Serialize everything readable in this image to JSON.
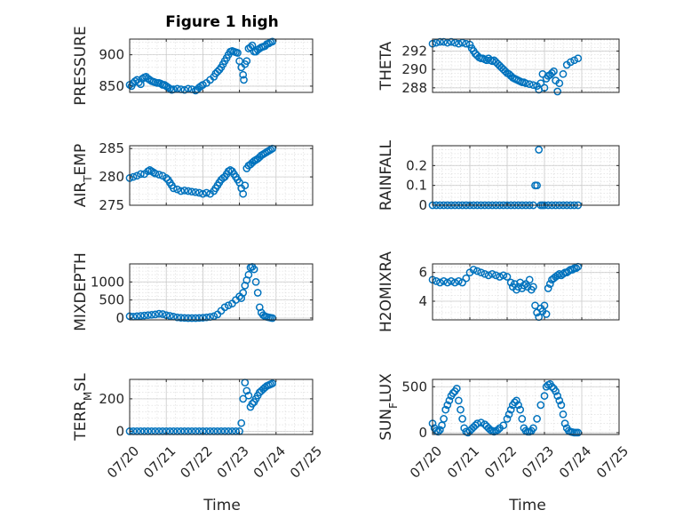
{
  "figure": {
    "title": "Figure 1 high",
    "xlabel_left": "Time",
    "xlabel_right": "Time",
    "marker_color": "#0072BD",
    "grid": true,
    "x_tick_labels": [
      "07/20",
      "07/21",
      "07/22",
      "07/23",
      "07/24",
      "07/25"
    ]
  },
  "chart_data": [
    {
      "type": "scatter",
      "ylabel": "PRESSURE",
      "ylim": [
        840,
        925
      ],
      "yticks": [
        850,
        900
      ],
      "x": [
        0,
        0.05,
        0.1,
        0.15,
        0.2,
        0.25,
        0.3,
        0.35,
        0.4,
        0.45,
        0.5,
        0.55,
        0.6,
        0.65,
        0.7,
        0.75,
        0.8,
        0.85,
        0.9,
        0.95,
        1,
        1.05,
        1.1,
        1.15,
        1.2,
        1.3,
        1.4,
        1.5,
        1.6,
        1.7,
        1.8,
        1.85,
        1.9,
        1.95,
        2,
        2.1,
        2.2,
        2.3,
        2.35,
        2.4,
        2.45,
        2.5,
        2.55,
        2.6,
        2.65,
        2.7,
        2.75,
        2.8,
        2.85,
        2.9,
        2.95,
        3,
        3.05,
        3.1,
        3.12,
        3.15,
        3.2,
        3.25,
        3.3,
        3.35,
        3.4,
        3.45,
        3.5,
        3.55,
        3.6,
        3.65,
        3.7,
        3.75,
        3.8,
        3.85,
        3.9
      ],
      "y": [
        852,
        850,
        855,
        858,
        860,
        856,
        853,
        862,
        864,
        865,
        862,
        860,
        858,
        857,
        856,
        855,
        855,
        854,
        852,
        852,
        850,
        848,
        846,
        844,
        845,
        846,
        845,
        844,
        846,
        845,
        843,
        845,
        848,
        850,
        852,
        855,
        860,
        865,
        870,
        873,
        876,
        880,
        885,
        890,
        895,
        900,
        905,
        906,
        905,
        904,
        903,
        890,
        880,
        868,
        860,
        885,
        890,
        910,
        912,
        915,
        905,
        905,
        908,
        910,
        912,
        913,
        914,
        917,
        918,
        920,
        921
      ]
    },
    {
      "type": "scatter",
      "ylabel": "THETA",
      "ylim": [
        287.5,
        293.3
      ],
      "yticks": [
        288,
        290,
        292
      ],
      "x": [
        0,
        0.1,
        0.2,
        0.3,
        0.4,
        0.5,
        0.6,
        0.7,
        0.8,
        0.9,
        1,
        1.05,
        1.1,
        1.15,
        1.2,
        1.25,
        1.3,
        1.35,
        1.4,
        1.45,
        1.5,
        1.55,
        1.6,
        1.65,
        1.7,
        1.75,
        1.8,
        1.85,
        1.9,
        1.95,
        2,
        2.05,
        2.1,
        2.15,
        2.2,
        2.25,
        2.3,
        2.35,
        2.4,
        2.45,
        2.5,
        2.6,
        2.7,
        2.8,
        2.85,
        2.9,
        2.95,
        3,
        3.05,
        3.1,
        3.15,
        3.2,
        3.25,
        3.3,
        3.35,
        3.4,
        3.5,
        3.6,
        3.7,
        3.8,
        3.9
      ],
      "y": [
        292.8,
        292.9,
        293.0,
        293.0,
        292.9,
        293.0,
        292.9,
        292.8,
        292.9,
        292.8,
        292.7,
        292.3,
        292.0,
        291.7,
        291.5,
        291.3,
        291.2,
        291.2,
        291.1,
        291.0,
        291.2,
        291.0,
        290.9,
        291.0,
        290.8,
        290.6,
        290.4,
        290.2,
        290.0,
        289.8,
        289.6,
        289.5,
        289.3,
        289.1,
        289.0,
        288.9,
        288.8,
        288.7,
        288.6,
        288.6,
        288.5,
        288.4,
        288.3,
        288.2,
        287.8,
        288.5,
        289.5,
        288.0,
        289.0,
        289.3,
        289.4,
        289.6,
        289.8,
        288.8,
        287.6,
        288.5,
        289.5,
        290.5,
        290.8,
        291.0,
        291.2
      ]
    },
    {
      "type": "scatter",
      "ylabel": "AIR_T_EMP",
      "ylim": [
        275,
        285.5
      ],
      "yticks": [
        275,
        280,
        285
      ],
      "x": [
        0,
        0.1,
        0.2,
        0.3,
        0.4,
        0.5,
        0.55,
        0.6,
        0.65,
        0.7,
        0.8,
        0.9,
        1,
        1.05,
        1.1,
        1.15,
        1.2,
        1.3,
        1.4,
        1.5,
        1.6,
        1.7,
        1.8,
        1.9,
        2,
        2.1,
        2.2,
        2.3,
        2.35,
        2.4,
        2.45,
        2.5,
        2.55,
        2.6,
        2.65,
        2.7,
        2.75,
        2.8,
        2.85,
        2.9,
        2.95,
        3,
        3.05,
        3.1,
        3.15,
        3.2,
        3.25,
        3.3,
        3.35,
        3.4,
        3.45,
        3.5,
        3.55,
        3.6,
        3.65,
        3.7,
        3.75,
        3.8,
        3.85,
        3.9
      ],
      "y": [
        279.8,
        280.0,
        280.2,
        280.5,
        280.5,
        281.0,
        281.2,
        281.0,
        280.8,
        280.6,
        280.4,
        280.2,
        279.8,
        279.5,
        279.0,
        278.5,
        278.0,
        277.8,
        277.5,
        277.6,
        277.5,
        277.4,
        277.3,
        277.2,
        277.0,
        277.2,
        277.0,
        277.5,
        278.0,
        278.5,
        279.0,
        279.5,
        279.8,
        280.0,
        280.5,
        281.0,
        281.2,
        281.0,
        280.5,
        280.0,
        279.5,
        279.0,
        278.0,
        277.0,
        278.5,
        281.5,
        282.0,
        282.2,
        282.5,
        282.8,
        283.0,
        283.2,
        283.5,
        283.8,
        284.0,
        284.2,
        284.4,
        284.6,
        284.8,
        285.0
      ]
    },
    {
      "type": "scatter",
      "ylabel": "RAINFALL",
      "ylim": [
        0,
        0.3
      ],
      "yticks": [
        0,
        0.1,
        0.2
      ],
      "x": [
        0,
        0.1,
        0.2,
        0.3,
        0.4,
        0.5,
        0.6,
        0.7,
        0.8,
        0.9,
        1,
        1.1,
        1.2,
        1.3,
        1.4,
        1.5,
        1.6,
        1.7,
        1.8,
        1.9,
        2,
        2.1,
        2.2,
        2.3,
        2.4,
        2.5,
        2.6,
        2.7,
        2.75,
        2.8,
        2.85,
        2.9,
        2.95,
        3,
        3.1,
        3.2,
        3.3,
        3.4,
        3.5,
        3.6,
        3.7,
        3.8,
        3.9
      ],
      "y": [
        0,
        0,
        0,
        0,
        0,
        0,
        0,
        0,
        0,
        0,
        0,
        0,
        0,
        0,
        0,
        0,
        0,
        0,
        0,
        0,
        0,
        0,
        0,
        0,
        0,
        0,
        0,
        0,
        0.1,
        0.1,
        0.28,
        0,
        0,
        0,
        0,
        0,
        0,
        0,
        0,
        0,
        0,
        0,
        0
      ]
    },
    {
      "type": "scatter",
      "ylabel": "MIXDEPTH",
      "ylim": [
        -50,
        1500
      ],
      "yticks": [
        0,
        500,
        1000
      ],
      "x": [
        0,
        0.1,
        0.2,
        0.3,
        0.4,
        0.5,
        0.6,
        0.7,
        0.8,
        0.9,
        1,
        1.1,
        1.2,
        1.3,
        1.4,
        1.5,
        1.6,
        1.7,
        1.8,
        1.9,
        2,
        2.1,
        2.2,
        2.3,
        2.4,
        2.5,
        2.6,
        2.7,
        2.8,
        2.9,
        3,
        3.05,
        3.1,
        3.15,
        3.2,
        3.25,
        3.3,
        3.35,
        3.4,
        3.45,
        3.5,
        3.55,
        3.6,
        3.65,
        3.7,
        3.75,
        3.8,
        3.85,
        3.9
      ],
      "y": [
        50,
        40,
        50,
        60,
        70,
        80,
        90,
        100,
        120,
        110,
        80,
        60,
        40,
        20,
        10,
        5,
        0,
        0,
        0,
        5,
        10,
        20,
        30,
        50,
        100,
        200,
        300,
        350,
        400,
        500,
        600,
        550,
        700,
        900,
        1050,
        1200,
        1400,
        1420,
        1350,
        1000,
        700,
        300,
        150,
        80,
        50,
        30,
        20,
        10,
        0
      ]
    },
    {
      "type": "scatter",
      "ylabel": "H2OMIXRA",
      "ylim": [
        2.7,
        6.6
      ],
      "yticks": [
        4,
        6
      ],
      "x": [
        0,
        0.1,
        0.2,
        0.3,
        0.4,
        0.5,
        0.6,
        0.7,
        0.8,
        0.9,
        1,
        1.1,
        1.2,
        1.3,
        1.4,
        1.5,
        1.6,
        1.7,
        1.8,
        1.9,
        2,
        2.1,
        2.15,
        2.2,
        2.25,
        2.3,
        2.35,
        2.4,
        2.45,
        2.5,
        2.55,
        2.6,
        2.65,
        2.7,
        2.75,
        2.8,
        2.85,
        2.9,
        2.95,
        3,
        3.05,
        3.1,
        3.15,
        3.2,
        3.25,
        3.3,
        3.35,
        3.4,
        3.45,
        3.5,
        3.55,
        3.6,
        3.65,
        3.7,
        3.75,
        3.8,
        3.85,
        3.9
      ],
      "y": [
        5.5,
        5.4,
        5.3,
        5.4,
        5.3,
        5.4,
        5.3,
        5.4,
        5.3,
        5.6,
        6.0,
        6.2,
        6.1,
        6.0,
        5.9,
        5.8,
        5.9,
        5.8,
        5.7,
        5.8,
        5.7,
        5.3,
        5.0,
        5.2,
        4.8,
        5.0,
        5.3,
        4.9,
        5.1,
        5.2,
        5.0,
        5.5,
        4.8,
        5.0,
        3.7,
        3.2,
        2.9,
        3.5,
        3.3,
        3.7,
        3.1,
        4.9,
        5.2,
        5.5,
        5.6,
        5.7,
        5.8,
        5.9,
        5.8,
        5.9,
        6.0,
        6.0,
        6.1,
        6.2,
        6.2,
        6.3,
        6.3,
        6.4
      ]
    },
    {
      "type": "scatter",
      "ylabel": "TERR_M_SL",
      "ylim": [
        -20,
        320
      ],
      "yticks": [
        0,
        200
      ],
      "x": [
        0,
        0.1,
        0.2,
        0.3,
        0.4,
        0.5,
        0.6,
        0.7,
        0.8,
        0.9,
        1,
        1.1,
        1.2,
        1.3,
        1.4,
        1.5,
        1.6,
        1.7,
        1.8,
        1.9,
        2,
        2.1,
        2.2,
        2.3,
        2.4,
        2.5,
        2.6,
        2.7,
        2.8,
        2.9,
        3,
        3.05,
        3.1,
        3.15,
        3.2,
        3.25,
        3.3,
        3.35,
        3.4,
        3.45,
        3.5,
        3.55,
        3.6,
        3.65,
        3.7,
        3.75,
        3.8,
        3.85,
        3.9
      ],
      "y": [
        0,
        0,
        0,
        0,
        0,
        0,
        0,
        0,
        0,
        0,
        0,
        0,
        0,
        0,
        0,
        0,
        0,
        0,
        0,
        0,
        0,
        0,
        0,
        0,
        0,
        0,
        0,
        0,
        0,
        0,
        0,
        50,
        200,
        300,
        250,
        220,
        150,
        170,
        180,
        200,
        220,
        240,
        250,
        260,
        270,
        280,
        285,
        290,
        295
      ]
    },
    {
      "type": "scatter",
      "ylabel": "SUN_F_LUX",
      "ylim": [
        -20,
        580
      ],
      "yticks": [
        0,
        500
      ],
      "x": [
        0,
        0.05,
        0.1,
        0.15,
        0.2,
        0.25,
        0.3,
        0.35,
        0.4,
        0.45,
        0.5,
        0.55,
        0.6,
        0.65,
        0.7,
        0.75,
        0.8,
        0.85,
        0.9,
        0.95,
        1,
        1.05,
        1.1,
        1.15,
        1.2,
        1.3,
        1.4,
        1.45,
        1.5,
        1.55,
        1.6,
        1.65,
        1.7,
        1.75,
        1.8,
        1.9,
        2,
        2.05,
        2.1,
        2.15,
        2.2,
        2.25,
        2.3,
        2.35,
        2.4,
        2.45,
        2.5,
        2.55,
        2.6,
        2.65,
        2.7,
        2.8,
        2.9,
        3,
        3.05,
        3.1,
        3.15,
        3.2,
        3.25,
        3.3,
        3.35,
        3.4,
        3.45,
        3.5,
        3.55,
        3.6,
        3.65,
        3.7,
        3.75,
        3.8,
        3.85,
        3.9
      ],
      "y": [
        100,
        50,
        20,
        10,
        30,
        80,
        150,
        250,
        300,
        350,
        400,
        430,
        450,
        480,
        350,
        250,
        150,
        50,
        10,
        0,
        20,
        40,
        60,
        80,
        100,
        110,
        90,
        70,
        50,
        30,
        20,
        10,
        20,
        30,
        50,
        80,
        150,
        200,
        250,
        300,
        330,
        350,
        300,
        250,
        150,
        50,
        20,
        10,
        10,
        20,
        50,
        150,
        300,
        400,
        500,
        520,
        530,
        500,
        480,
        450,
        400,
        350,
        300,
        200,
        100,
        50,
        20,
        10,
        5,
        0,
        0,
        0
      ]
    }
  ]
}
